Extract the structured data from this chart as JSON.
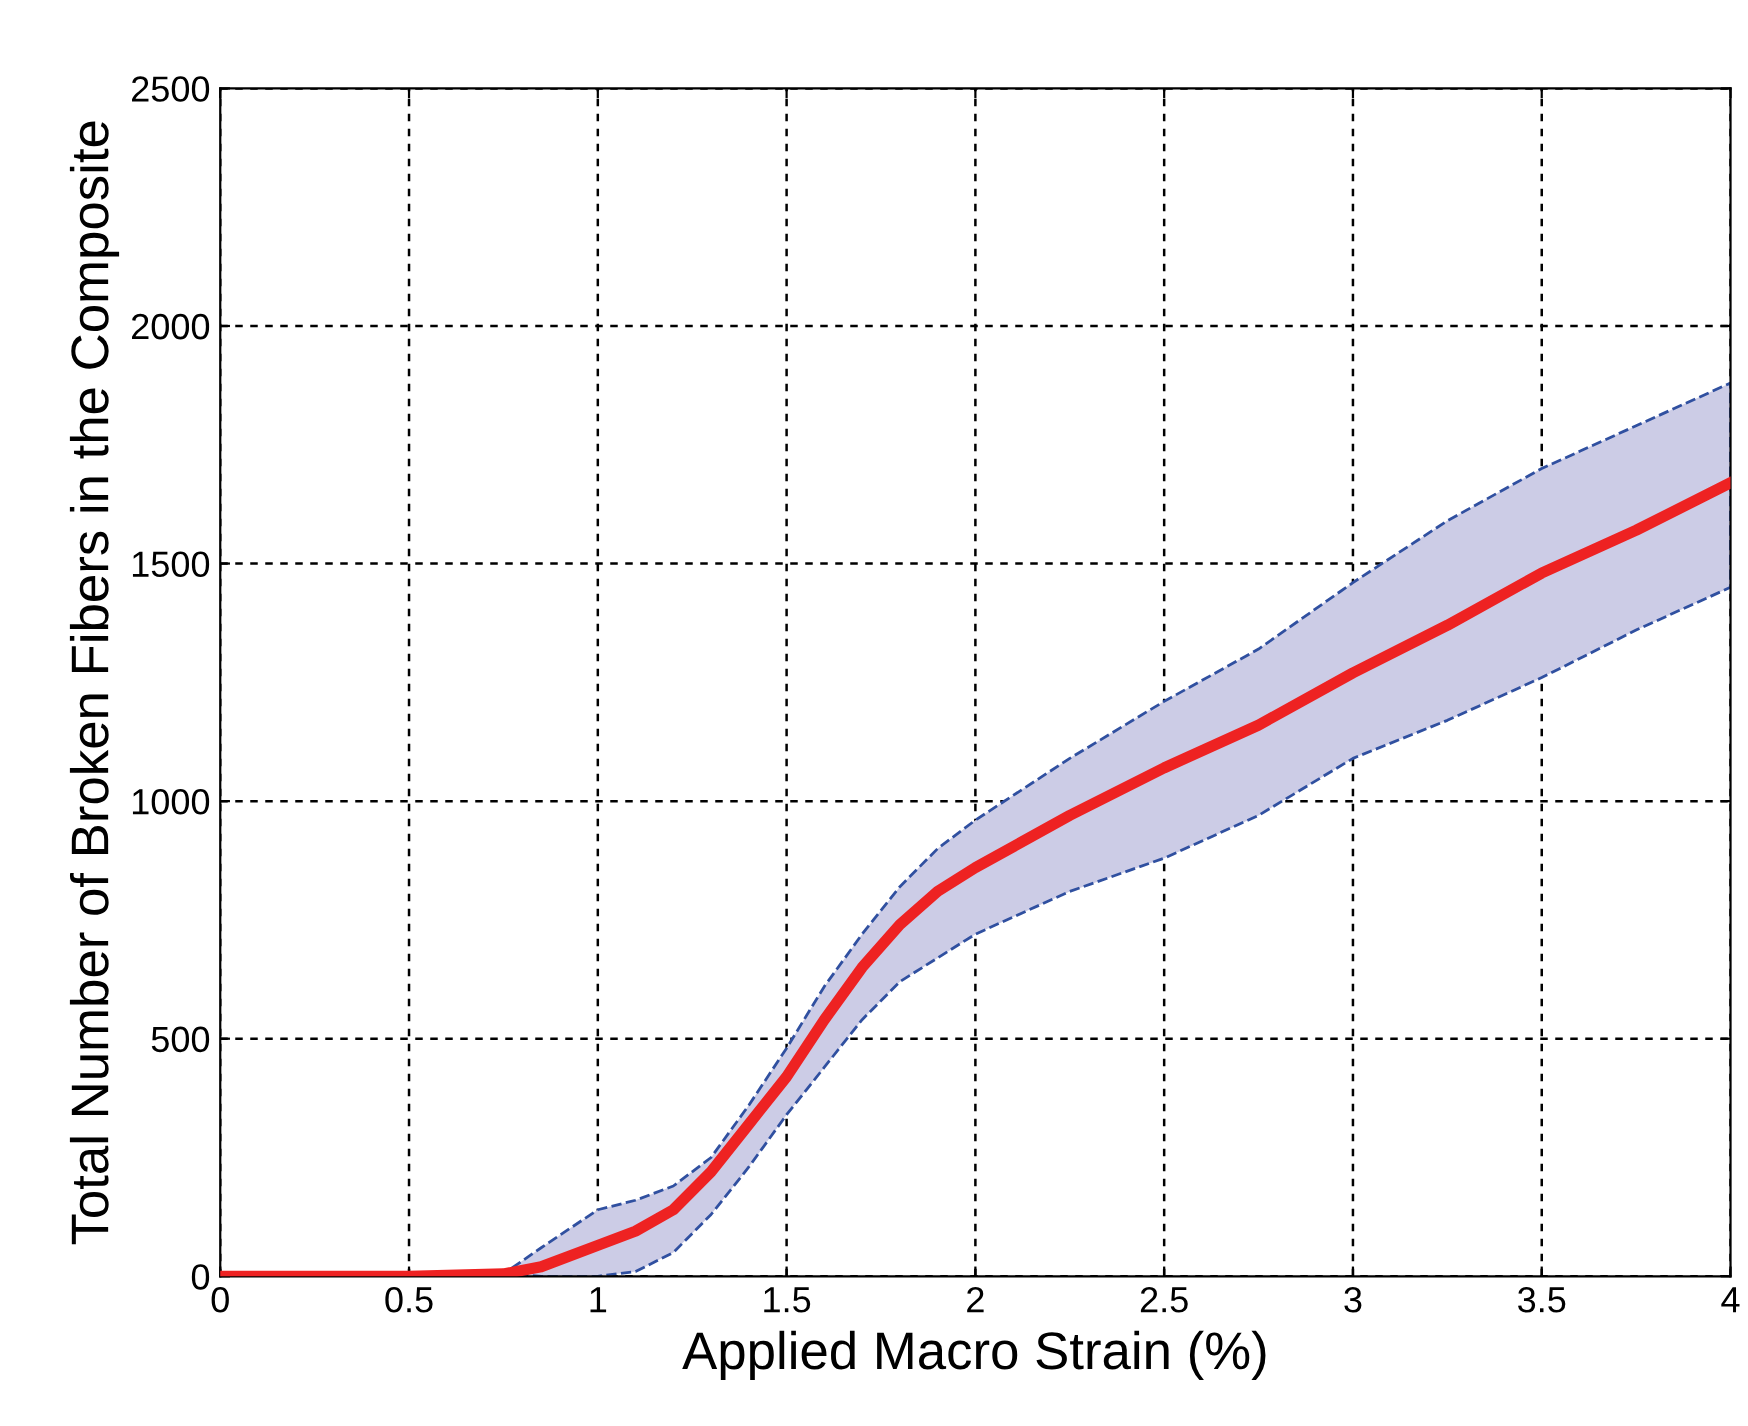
{
  "chart_data": {
    "type": "line",
    "xlabel": "Applied Macro Strain (%)",
    "ylabel": "Total Number of Broken Fibers in the Composite",
    "x": [
      0,
      0.5,
      0.75,
      0.85,
      1.0,
      1.1,
      1.2,
      1.3,
      1.4,
      1.5,
      1.6,
      1.7,
      1.8,
      1.9,
      2.0,
      2.25,
      2.5,
      2.75,
      3.0,
      3.25,
      3.5,
      3.75,
      4.0
    ],
    "series": [
      {
        "color": "#ee2222",
        "values": [
          0,
          0,
          5,
          20,
          65,
          95,
          140,
          220,
          320,
          420,
          540,
          650,
          740,
          810,
          860,
          970,
          1070,
          1160,
          1270,
          1370,
          1480,
          1570,
          1670
        ],
        "lower": [
          null,
          null,
          5,
          0,
          0,
          10,
          50,
          130,
          230,
          340,
          440,
          540,
          620,
          670,
          720,
          810,
          880,
          970,
          1090,
          1170,
          1260,
          1360,
          1450
        ],
        "upper": [
          null,
          null,
          5,
          60,
          140,
          160,
          190,
          250,
          360,
          480,
          610,
          720,
          820,
          900,
          960,
          1090,
          1210,
          1320,
          1460,
          1590,
          1700,
          1790,
          1880
        ]
      }
    ],
    "xlim": [
      0,
      4
    ],
    "xticks": [
      0,
      0.5,
      1,
      1.5,
      2,
      2.5,
      3,
      3.5,
      4
    ],
    "ylim": [
      0,
      2500
    ],
    "yticks": [
      0,
      500,
      1000,
      1500,
      2000,
      2500
    ],
    "grid": true,
    "marker": "none",
    "line_style": "solid"
  }
}
